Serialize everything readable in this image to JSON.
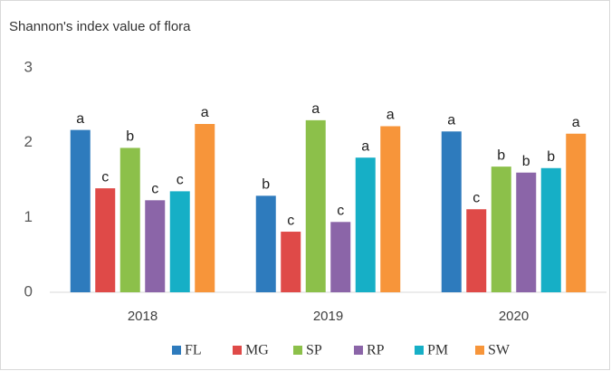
{
  "chart_data": {
    "type": "bar",
    "title": "Shannon's index value of flora",
    "categories": [
      "2018",
      "2019",
      "2020"
    ],
    "ylim": [
      0,
      3
    ],
    "yticks": [
      0,
      1,
      2,
      3
    ],
    "grid": false,
    "legend": "bottom",
    "series": [
      {
        "name": "FL",
        "color": "#2e7bbd",
        "values": [
          2.17,
          1.29,
          2.15
        ],
        "significance_letters": [
          "a",
          "b",
          "a"
        ]
      },
      {
        "name": "MG",
        "color": "#df4a48",
        "values": [
          1.39,
          0.81,
          1.11
        ],
        "significance_letters": [
          "c",
          "c",
          "c"
        ]
      },
      {
        "name": "SP",
        "color": "#8cc04a",
        "values": [
          1.93,
          2.3,
          1.68
        ],
        "significance_letters": [
          "b",
          "a",
          "b"
        ]
      },
      {
        "name": "RP",
        "color": "#8b65a8",
        "values": [
          1.23,
          0.94,
          1.6
        ],
        "significance_letters": [
          "c",
          "c",
          "b"
        ]
      },
      {
        "name": "PM",
        "color": "#16afc6",
        "values": [
          1.35,
          1.8,
          1.66
        ],
        "significance_letters": [
          "c",
          "a",
          "b"
        ]
      },
      {
        "name": "SW",
        "color": "#f7953a",
        "values": [
          2.25,
          2.22,
          2.12
        ],
        "significance_letters": [
          "a",
          "a",
          "a"
        ]
      }
    ]
  }
}
